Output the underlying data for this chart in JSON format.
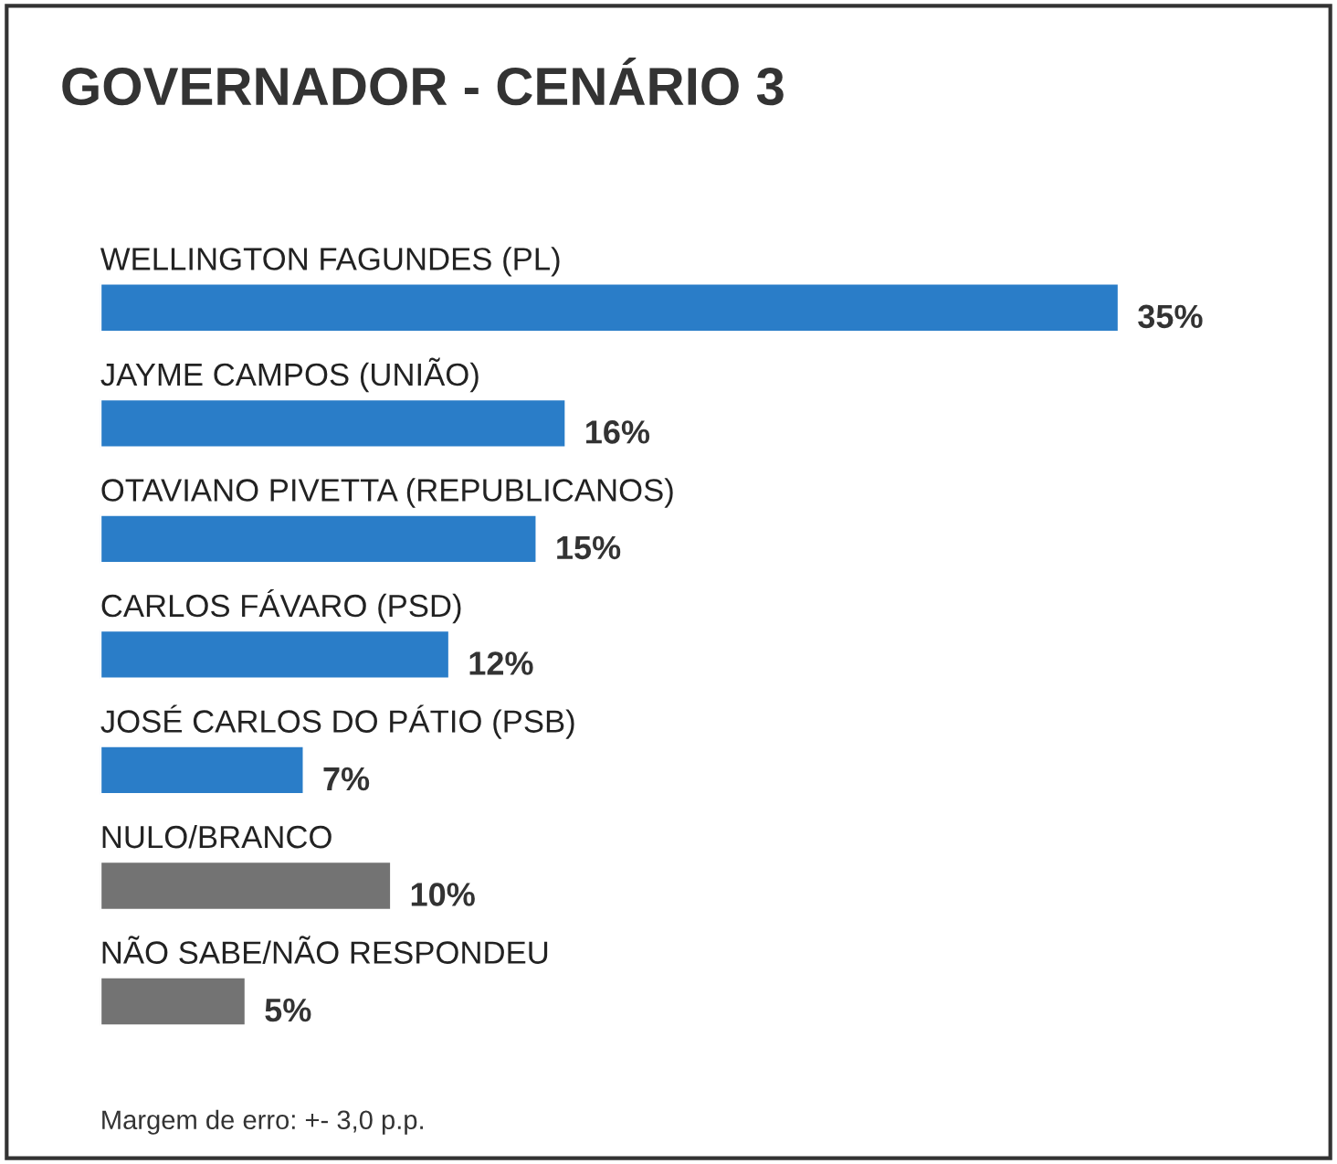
{
  "chart_data": {
    "type": "bar",
    "orientation": "horizontal",
    "title": "GOVERNADOR - CENÁRIO 3",
    "categories": [
      "WELLINGTON FAGUNDES (PL)",
      "JAYME CAMPOS (UNIÃO)",
      "OTAVIANO PIVETTA (REPUBLICANOS)",
      "CARLOS FÁVARO (PSD)",
      "JOSÉ CARLOS DO PÁTIO (PSB)",
      "NULO/BRANCO",
      "NÃO SABE/NÃO RESPONDEU"
    ],
    "values": [
      35,
      16,
      15,
      12,
      7,
      10,
      5
    ],
    "value_labels": [
      "35%",
      "16%",
      "15%",
      "12%",
      "7%",
      "10%",
      "5%"
    ],
    "colors": [
      "#2a7dc8",
      "#2a7dc8",
      "#2a7dc8",
      "#2a7dc8",
      "#2a7dc8",
      "#737373",
      "#737373"
    ],
    "annotations": [
      "Margem de erro: +- 3,0 p.p."
    ],
    "legend": false
  }
}
